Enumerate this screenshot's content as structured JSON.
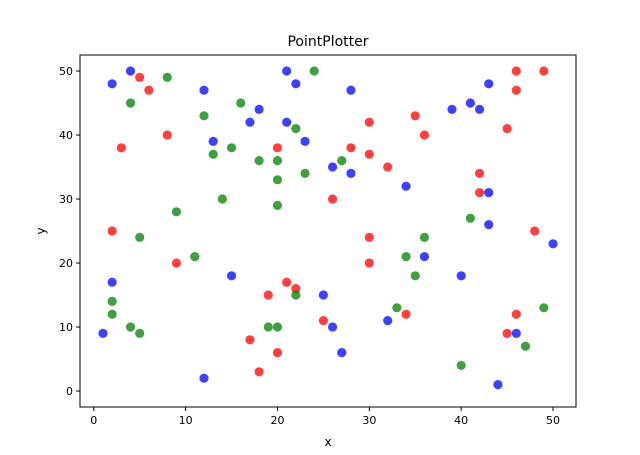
{
  "chart_data": {
    "type": "scatter",
    "title": "PointPlotter",
    "xlabel": "x",
    "ylabel": "y",
    "xlim": [
      -1.5,
      52.5
    ],
    "ylim": [
      -2.5,
      52.5
    ],
    "xticks": [
      0,
      10,
      20,
      30,
      40,
      50
    ],
    "yticks": [
      0,
      10,
      20,
      30,
      40,
      50
    ],
    "grid": false,
    "legend": "none",
    "marker_alpha": 0.75,
    "series": [
      {
        "color": "#ff0000",
        "points": [
          [
            5,
            49
          ],
          [
            6,
            47
          ],
          [
            8,
            40
          ],
          [
            3,
            38
          ],
          [
            2,
            25
          ],
          [
            9,
            20
          ],
          [
            20,
            38
          ],
          [
            26,
            30
          ],
          [
            28,
            38
          ],
          [
            30,
            42
          ],
          [
            30,
            37
          ],
          [
            32,
            35
          ],
          [
            35,
            43
          ],
          [
            36,
            40
          ],
          [
            30,
            24
          ],
          [
            30,
            20
          ],
          [
            21,
            17
          ],
          [
            22,
            16
          ],
          [
            19,
            15
          ],
          [
            17,
            8
          ],
          [
            20,
            6
          ],
          [
            18,
            3
          ],
          [
            25,
            11
          ],
          [
            34,
            12
          ],
          [
            42,
            34
          ],
          [
            42,
            31
          ],
          [
            45,
            41
          ],
          [
            46,
            50
          ],
          [
            46,
            47
          ],
          [
            49,
            50
          ],
          [
            48,
            25
          ],
          [
            46,
            12
          ],
          [
            45,
            9
          ]
        ]
      },
      {
        "color": "#0000ff",
        "points": [
          [
            4,
            50
          ],
          [
            2,
            48
          ],
          [
            12,
            47
          ],
          [
            18,
            44
          ],
          [
            17,
            42
          ],
          [
            13,
            39
          ],
          [
            21,
            50
          ],
          [
            22,
            48
          ],
          [
            21,
            42
          ],
          [
            23,
            39
          ],
          [
            28,
            47
          ],
          [
            26,
            35
          ],
          [
            28,
            34
          ],
          [
            34,
            32
          ],
          [
            39,
            44
          ],
          [
            41,
            45
          ],
          [
            42,
            44
          ],
          [
            43,
            48
          ],
          [
            43,
            31
          ],
          [
            43,
            26
          ],
          [
            36,
            21
          ],
          [
            40,
            18
          ],
          [
            50,
            23
          ],
          [
            2,
            17
          ],
          [
            15,
            18
          ],
          [
            1,
            9
          ],
          [
            12,
            2
          ],
          [
            25,
            15
          ],
          [
            26,
            10
          ],
          [
            27,
            6
          ],
          [
            32,
            11
          ],
          [
            46,
            9
          ],
          [
            44,
            1
          ]
        ]
      },
      {
        "color": "#008000",
        "points": [
          [
            8,
            49
          ],
          [
            4,
            45
          ],
          [
            12,
            43
          ],
          [
            16,
            45
          ],
          [
            13,
            37
          ],
          [
            15,
            38
          ],
          [
            18,
            36
          ],
          [
            20,
            36
          ],
          [
            20,
            33
          ],
          [
            20,
            29
          ],
          [
            24,
            50
          ],
          [
            22,
            41
          ],
          [
            23,
            34
          ],
          [
            27,
            36
          ],
          [
            14,
            30
          ],
          [
            9,
            28
          ],
          [
            5,
            24
          ],
          [
            11,
            21
          ],
          [
            2,
            14
          ],
          [
            2,
            12
          ],
          [
            4,
            10
          ],
          [
            5,
            9
          ],
          [
            19,
            10
          ],
          [
            20,
            10
          ],
          [
            22,
            15
          ],
          [
            33,
            13
          ],
          [
            34,
            21
          ],
          [
            35,
            18
          ],
          [
            36,
            24
          ],
          [
            41,
            27
          ],
          [
            40,
            4
          ],
          [
            47,
            7
          ],
          [
            49,
            13
          ]
        ]
      }
    ]
  }
}
